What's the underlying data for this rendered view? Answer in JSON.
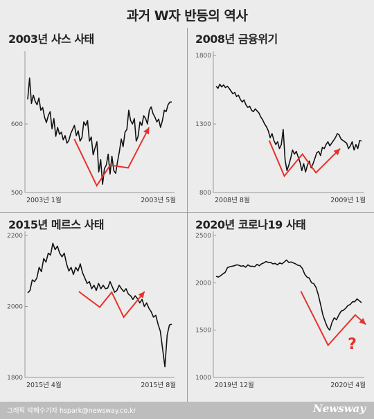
{
  "header": {
    "title": "과거 W자 반등의 역사"
  },
  "footer": {
    "credit": "그래픽 박혜수기자 hspark@newsway.co.kr",
    "brand": "Newsway"
  },
  "colors": {
    "line": "#111111",
    "arrow": "#e8302a",
    "grid": "#999999",
    "background": "#ececec"
  },
  "chart_data": [
    {
      "type": "line",
      "title": "2003년 사스 사태",
      "ylim": [
        500,
        700
      ],
      "yticks": [
        500,
        600
      ],
      "ytick_labels": [
        "500",
        "600"
      ],
      "xtick_labels": [
        "2003년 1월",
        "2003년 5월"
      ],
      "grid": false,
      "series": [
        {
          "values": [
            636,
            667,
            630,
            642,
            633,
            628,
            638,
            620,
            624,
            610,
            602,
            612,
            618,
            593,
            608,
            582,
            595,
            585,
            588,
            577,
            583,
            572,
            576,
            586,
            592,
            598,
            583,
            590,
            575,
            580,
            603,
            598,
            605,
            575,
            581,
            555,
            565,
            574,
            530,
            548,
            512,
            535,
            540,
            556,
            527,
            553,
            532,
            528,
            545,
            560,
            578,
            567,
            588,
            592,
            620,
            605,
            600,
            608,
            575,
            582,
            603,
            598,
            612,
            608,
            600,
            620,
            625,
            615,
            610,
            603,
            607,
            595,
            605,
            620,
            618,
            628,
            632,
            632
          ]
        }
      ],
      "annotation": {
        "shape": "W-arrow",
        "color": "#e8302a"
      }
    },
    {
      "type": "line",
      "title": "2008년 금융위기",
      "ylim": [
        800,
        1800
      ],
      "yticks": [
        800,
        1300,
        1800
      ],
      "ytick_labels": [
        "800",
        "1300",
        "1800"
      ],
      "xtick_labels": [
        "2008년 8월",
        "2009년 1월"
      ],
      "grid": false,
      "series": [
        {
          "values": [
            1575,
            1560,
            1590,
            1570,
            1585,
            1565,
            1575,
            1560,
            1540,
            1520,
            1530,
            1500,
            1510,
            1480,
            1460,
            1475,
            1440,
            1420,
            1430,
            1400,
            1390,
            1410,
            1395,
            1380,
            1350,
            1330,
            1300,
            1280,
            1250,
            1200,
            1230,
            1180,
            1150,
            1170,
            1120,
            1150,
            1260,
            1040,
            960,
            1000,
            1050,
            1110,
            1080,
            1100,
            1060,
            1020,
            960,
            1010,
            950,
            1000,
            1030,
            980,
            1010,
            1050,
            1090,
            1100,
            1070,
            1130,
            1120,
            1150,
            1170,
            1140,
            1160,
            1180,
            1200,
            1230,
            1220,
            1190,
            1180,
            1170,
            1160,
            1120,
            1140,
            1170,
            1110,
            1150,
            1120,
            1180,
            1175
          ]
        }
      ],
      "annotation": {
        "shape": "W-arrow",
        "color": "#e8302a"
      }
    },
    {
      "type": "line",
      "title": "2015년 메르스 사태",
      "ylim": [
        1800,
        2200
      ],
      "yticks": [
        1800,
        2000,
        2200
      ],
      "ytick_labels": [
        "1800",
        "2000",
        "2200"
      ],
      "xtick_labels": [
        "2015년 4월",
        "2015년 8월"
      ],
      "grid": false,
      "series": [
        {
          "values": [
            2038,
            2045,
            2075,
            2070,
            2080,
            2110,
            2098,
            2135,
            2125,
            2150,
            2145,
            2178,
            2160,
            2170,
            2150,
            2140,
            2150,
            2120,
            2100,
            2110,
            2090,
            2110,
            2100,
            2120,
            2095,
            2080,
            2065,
            2070,
            2050,
            2060,
            2045,
            2065,
            2050,
            2060,
            2050,
            2052,
            2070,
            2055,
            2040,
            2045,
            2060,
            2050,
            2042,
            2050,
            2035,
            2030,
            2020,
            2030,
            2022,
            2010,
            2020,
            2000,
            2010,
            1995,
            1985,
            1970,
            1975,
            1950,
            1930,
            1880,
            1830,
            1920,
            1948,
            1950
          ]
        }
      ],
      "annotation": {
        "shape": "W-arrow",
        "color": "#e8302a"
      }
    },
    {
      "type": "line",
      "title": "2020년 코로나19 사태",
      "ylim": [
        1000,
        2500
      ],
      "yticks": [
        1000,
        1500,
        2000,
        2500
      ],
      "ytick_labels": [
        "1000",
        "1500",
        "2000",
        "2500"
      ],
      "xtick_labels": [
        "2019년 12월",
        "2020년 4월"
      ],
      "grid": false,
      "series": [
        {
          "values": [
            2068,
            2060,
            2075,
            2095,
            2110,
            2160,
            2170,
            2175,
            2180,
            2190,
            2185,
            2175,
            2180,
            2165,
            2190,
            2175,
            2175,
            2170,
            2195,
            2180,
            2200,
            2210,
            2225,
            2215,
            2215,
            2200,
            2205,
            2190,
            2210,
            2200,
            2220,
            2240,
            2215,
            2220,
            2210,
            2200,
            2185,
            2180,
            2150,
            2090,
            2060,
            2050,
            2000,
            1990,
            1950,
            1870,
            1770,
            1660,
            1590,
            1530,
            1500,
            1580,
            1630,
            1610,
            1660,
            1700,
            1710,
            1730,
            1760,
            1770,
            1800,
            1800,
            1830,
            1810,
            1790
          ]
        }
      ],
      "annotation": {
        "shape": "W-arrow",
        "label": "?",
        "color": "#e8302a"
      }
    }
  ]
}
